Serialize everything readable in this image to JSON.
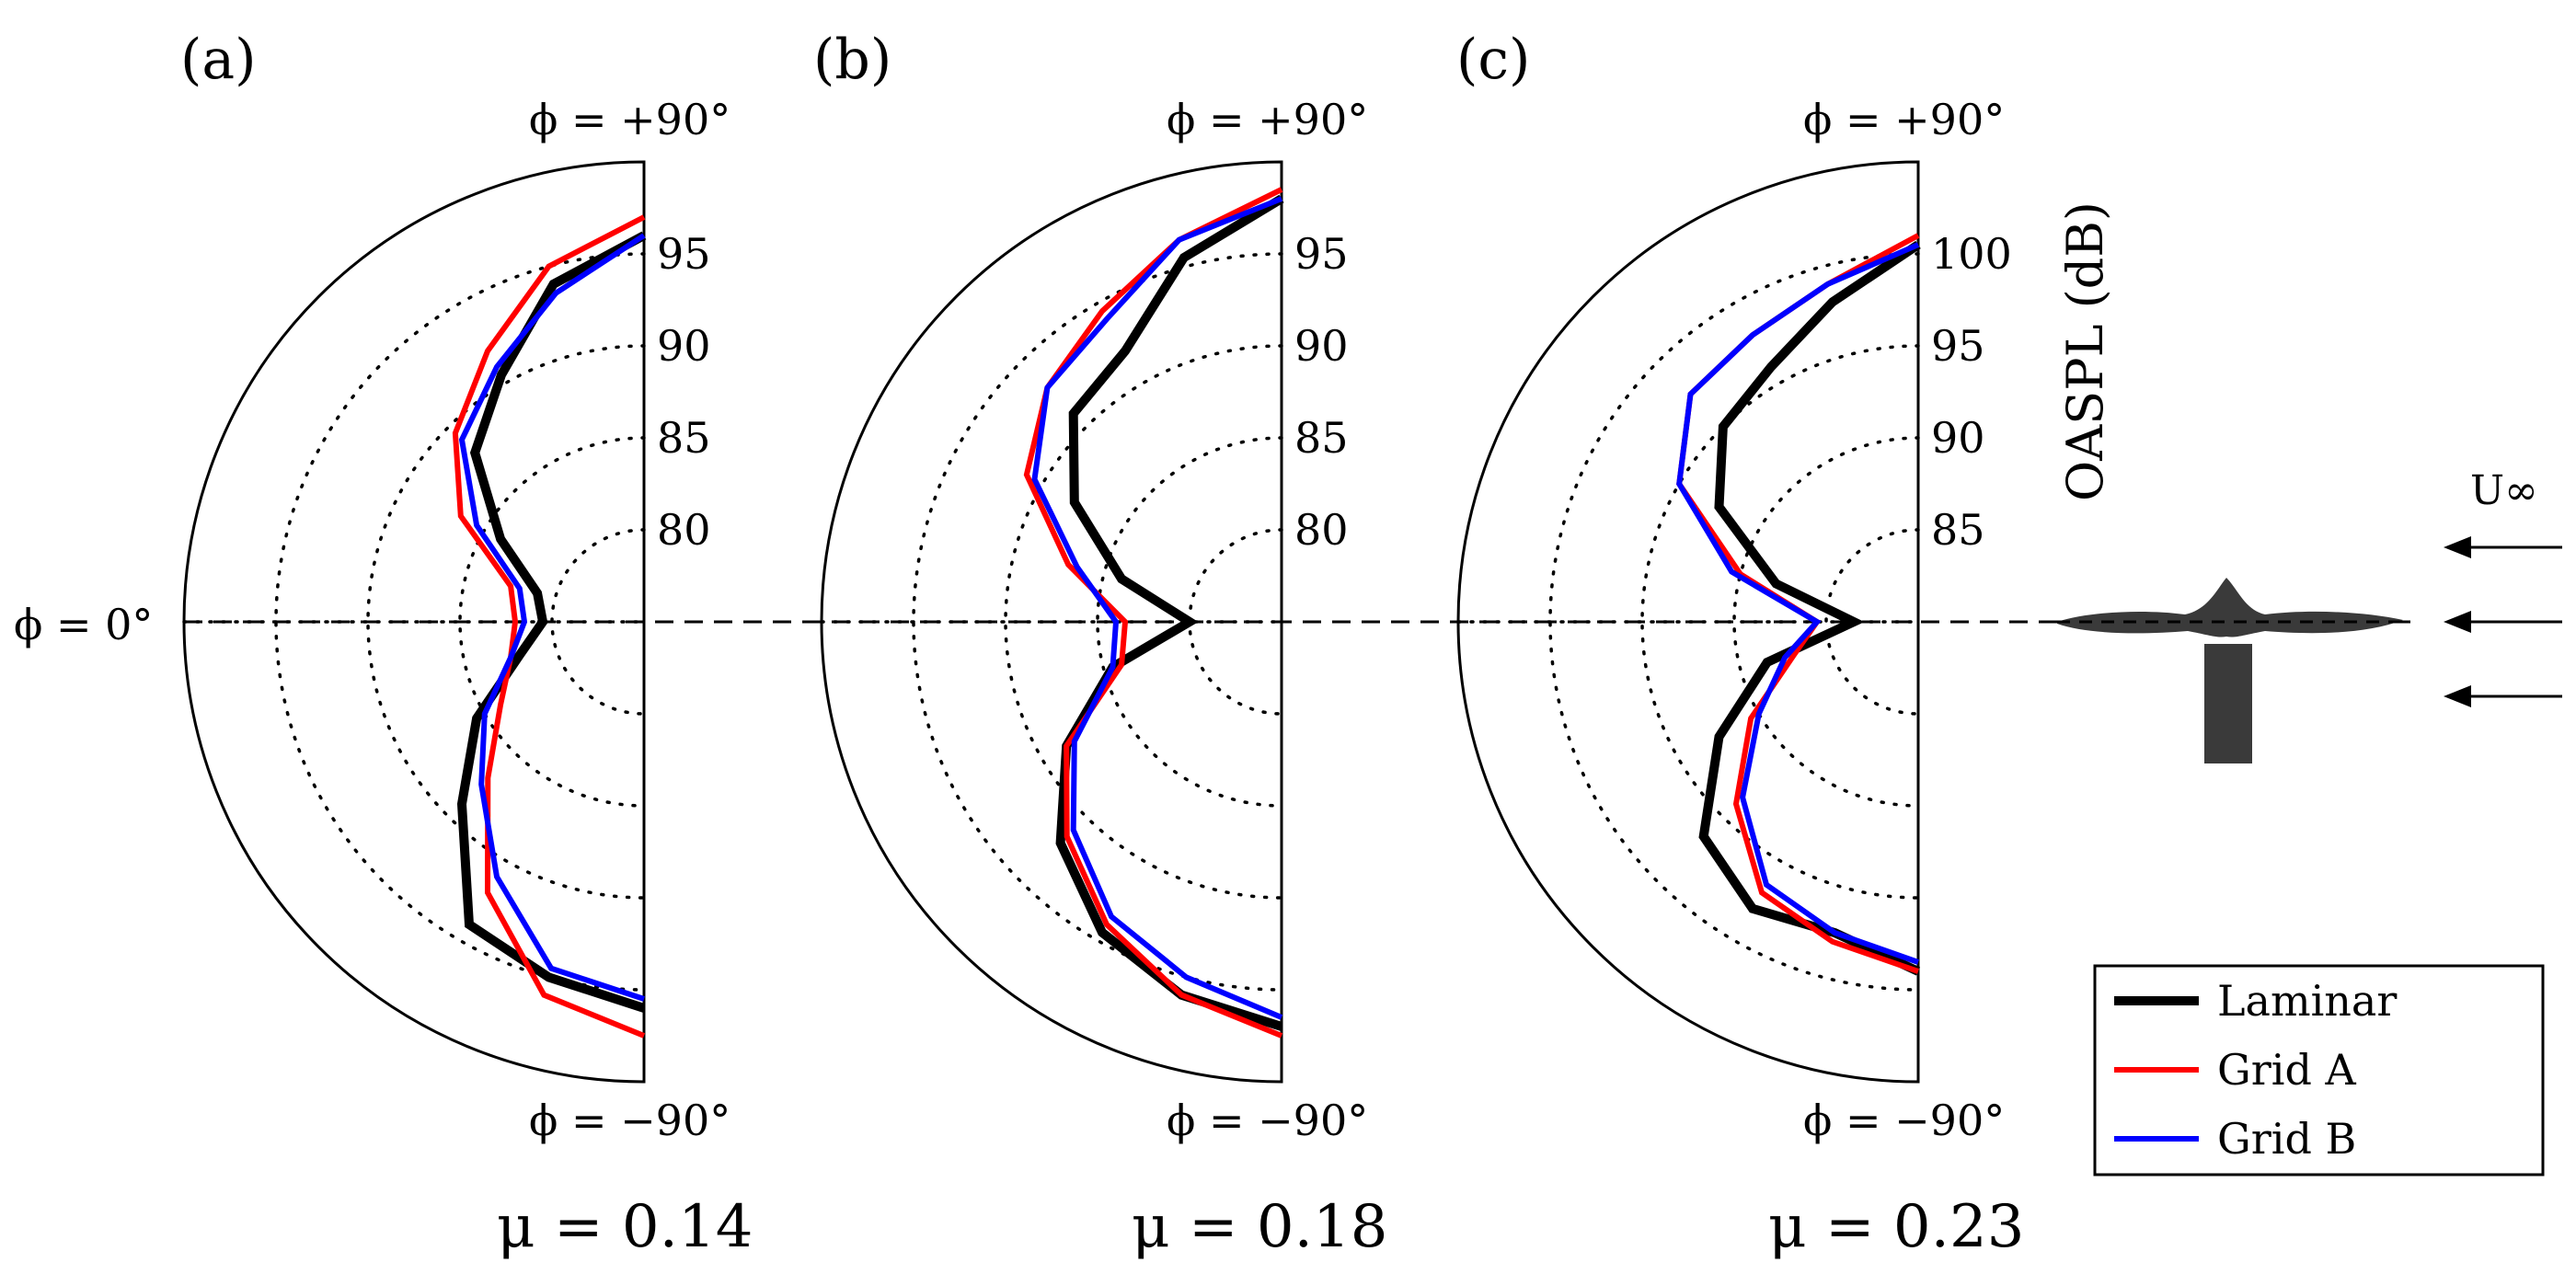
{
  "colors": {
    "laminar": "#000000",
    "grid_a": "#ff0000",
    "grid_b": "#0000ff",
    "grid_line": "#000000",
    "airfoil": "#3a3a3a"
  },
  "axis_title": "OASPL (dB)",
  "flow_label": "U∞",
  "flow_line": "- - - - -",
  "phi_labels": {
    "top": "ϕ = +90°",
    "bottom": "ϕ = −90°",
    "left": "ϕ = 0°"
  },
  "legend": [
    {
      "label": "Laminar",
      "key": "laminar"
    },
    {
      "label": "Grid A",
      "key": "grid_a"
    },
    {
      "label": "Grid B",
      "key": "grid_b"
    }
  ],
  "chart_data": [
    {
      "type": "polar-line",
      "panel": "(a)",
      "mu_label": "μ = 0.14",
      "theta_units": "degrees (phi)",
      "theta_range": [
        -90,
        90
      ],
      "r_range": [
        75,
        100
      ],
      "r_ticks": [
        80,
        85,
        90,
        95
      ],
      "r_tick_labels": [
        "80",
        "85",
        "90",
        "95"
      ],
      "theta": [
        90,
        75,
        60,
        45,
        30,
        15,
        0,
        -15,
        -30,
        -45,
        -60,
        -75,
        -90
      ],
      "series": [
        {
          "name": "Laminar",
          "values": [
            96,
            94,
            90.5,
            88,
            84,
            81,
            80.5,
            82,
            85.5,
            89,
            94,
            95,
            96
          ]
        },
        {
          "name": "Grid A",
          "values": [
            97,
            95,
            92,
            89.5,
            86.5,
            82.5,
            82,
            82.5,
            84,
            87,
            92,
            96,
            97.5
          ]
        },
        {
          "name": "Grid B",
          "values": [
            96,
            93.5,
            91,
            89,
            85.5,
            82,
            81.5,
            82.5,
            85,
            87.5,
            91,
            94.5,
            95.5
          ]
        }
      ]
    },
    {
      "type": "polar-line",
      "panel": "(b)",
      "mu_label": "μ = 0.18",
      "theta_units": "degrees (phi)",
      "theta_range": [
        -90,
        90
      ],
      "r_range": [
        75,
        100
      ],
      "r_ticks": [
        80,
        85,
        90,
        95
      ],
      "r_tick_labels": [
        "80",
        "85",
        "90",
        "95"
      ],
      "theta": [
        90,
        75,
        60,
        45,
        30,
        15,
        0,
        -15,
        -30,
        -45,
        -60,
        -75,
        -90
      ],
      "series": [
        {
          "name": "Laminar",
          "values": [
            98,
            95.5,
            92,
            91,
            88,
            84,
            80,
            84.5,
            88.5,
            92,
            94.5,
            96,
            97
          ]
        },
        {
          "name": "Grid A",
          "values": [
            98.5,
            96.5,
            94.5,
            93,
            91,
            87,
            83.5,
            84,
            88.5,
            91.5,
            94,
            96,
            97.5
          ]
        },
        {
          "name": "Grid B",
          "values": [
            98,
            96.5,
            94,
            93,
            90.5,
            86.5,
            84,
            84.5,
            88,
            91,
            93.5,
            95,
            96.5
          ]
        }
      ]
    },
    {
      "type": "polar-line",
      "panel": "(c)",
      "mu_label": "μ = 0.23",
      "theta_units": "degrees (phi)",
      "theta_range": [
        -90,
        90
      ],
      "r_range": [
        80,
        105
      ],
      "r_ticks": [
        85,
        90,
        95,
        100
      ],
      "r_tick_labels": [
        "85",
        "90",
        "95",
        "100"
      ],
      "theta": [
        90,
        75,
        60,
        45,
        30,
        15,
        0,
        -15,
        -30,
        -45,
        -60,
        -75,
        -90
      ],
      "series": [
        {
          "name": "Laminar",
          "values": [
            100.5,
            98,
            96,
            95,
            92.5,
            88,
            83.5,
            88.5,
            92.5,
            96.5,
            98,
            97.5,
            99
          ]
        },
        {
          "name": "Grid A",
          "values": [
            101,
            99,
            98,
            97.5,
            95,
            90,
            85.5,
            87,
            90.5,
            94,
            97,
            98,
            99
          ]
        },
        {
          "name": "Grid B",
          "values": [
            100.5,
            99,
            98,
            97.5,
            95,
            90.5,
            85.5,
            87.5,
            90,
            93.5,
            96.5,
            97.5,
            98.5
          ]
        }
      ]
    }
  ]
}
